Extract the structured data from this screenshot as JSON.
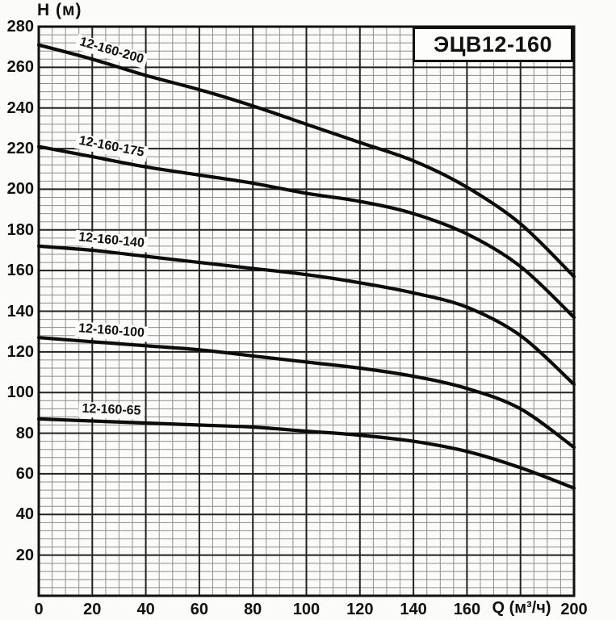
{
  "title_box": {
    "label": "ЭЦВ12-160"
  },
  "chart_meta": {
    "y_axis_title": "Н (м)",
    "x_axis_title": "Q (м³/ч)"
  },
  "chart_data": {
    "type": "line",
    "title": "ЭЦВ12-160",
    "xlabel": "Q (м³/ч)",
    "ylabel": "Н (м)",
    "xlim": [
      0,
      200
    ],
    "ylim": [
      0,
      280
    ],
    "x_major_step": 20,
    "y_major_step": 20,
    "x_minor_step": 5,
    "y_minor_step": 4,
    "grid": "major-and-minor",
    "legend_position": "labels-on-curves",
    "x_tick_labels": [
      0,
      20,
      40,
      60,
      80,
      100,
      120,
      140,
      160,
      200
    ],
    "y_tick_labels": [
      280,
      260,
      240,
      220,
      200,
      180,
      160,
      140,
      120,
      100,
      80,
      60,
      40,
      20
    ],
    "x_axis_label_replaces_tick": 180,
    "x": [
      0,
      20,
      40,
      60,
      80,
      100,
      120,
      140,
      160,
      180,
      200
    ],
    "series": [
      {
        "name": "12-160-200",
        "values": [
          271,
          264,
          256,
          249,
          241,
          232,
          223,
          214,
          201,
          183,
          157
        ]
      },
      {
        "name": "12-160-175",
        "values": [
          221,
          216,
          211,
          207,
          203,
          198,
          194,
          188,
          178,
          162,
          137
        ]
      },
      {
        "name": "12-160-140",
        "values": [
          172,
          170,
          167,
          164,
          161,
          158,
          154,
          149,
          142,
          128,
          104
        ]
      },
      {
        "name": "12-160-100",
        "values": [
          127,
          125,
          123,
          121,
          118,
          115,
          112,
          108,
          102,
          92,
          73
        ]
      },
      {
        "name": "12-160-65",
        "values": [
          87,
          86,
          85,
          84,
          83,
          81,
          79,
          76,
          71,
          63,
          53
        ]
      }
    ],
    "colors": {
      "curve": "#0c0c0c",
      "grid_major": "#222222",
      "grid_minor": "#8d8d8d",
      "border": "#111111",
      "background": "#fbfbf9"
    }
  }
}
